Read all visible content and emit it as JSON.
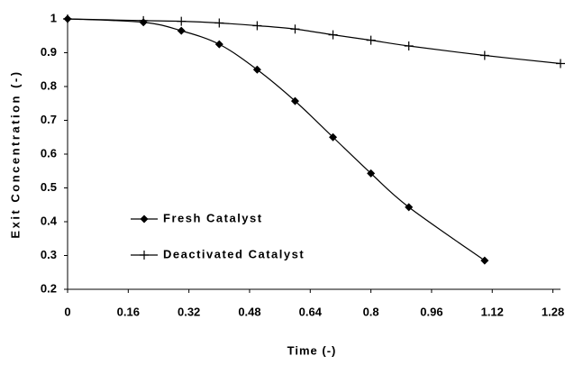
{
  "chart_data": {
    "type": "line",
    "x_label": "Time (-)",
    "y_label": "Exit Concentration (-)",
    "series": [
      {
        "name": "Fresh Catalyst",
        "color": "#000000",
        "marker": "diamond",
        "x": [
          0,
          0.2,
          0.3,
          0.4,
          0.5,
          0.6,
          0.7,
          0.8,
          0.9,
          1.1
        ],
        "values": [
          1.0,
          0.99,
          0.965,
          0.925,
          0.85,
          0.757,
          0.65,
          0.543,
          0.443,
          0.285
        ]
      },
      {
        "name": "Deactivated Catalyst",
        "color": "#000000",
        "marker": "plus",
        "x": [
          0,
          0.2,
          0.3,
          0.4,
          0.5,
          0.6,
          0.7,
          0.8,
          0.9,
          1.1,
          1.3
        ],
        "values": [
          1.0,
          0.995,
          0.993,
          0.988,
          0.98,
          0.97,
          0.953,
          0.937,
          0.92,
          0.892,
          0.868
        ]
      }
    ],
    "xlim": [
      0,
      1.3
    ],
    "xticks": [
      0,
      0.16,
      0.32,
      0.48,
      0.64,
      0.8,
      0.96,
      1.12,
      1.28
    ],
    "ylim": [
      0.2,
      1
    ],
    "yticks": [
      0.2,
      0.3,
      0.4,
      0.5,
      0.6,
      0.7,
      0.8,
      0.9,
      1
    ],
    "grid": false,
    "legend": "lower-left"
  }
}
